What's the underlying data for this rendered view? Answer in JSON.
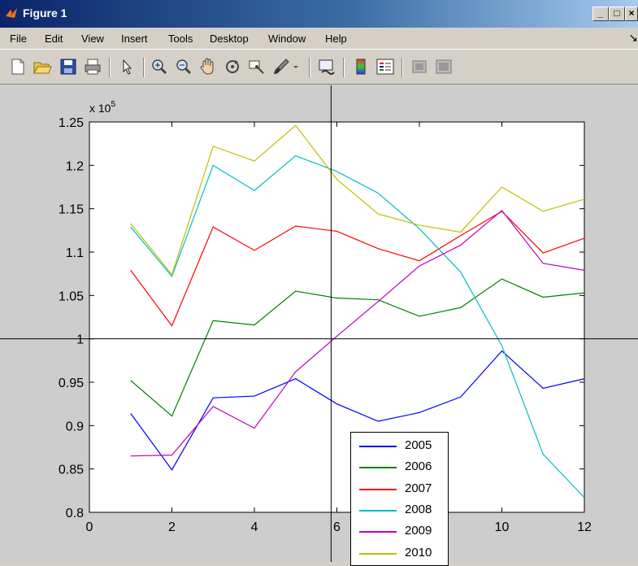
{
  "window": {
    "title": "Figure 1",
    "controls": {
      "minimize": "_",
      "maximize": "□",
      "close": "×"
    }
  },
  "menubar": {
    "items": [
      "File",
      "Edit",
      "View",
      "Insert",
      "Tools",
      "Desktop",
      "Window",
      "Help"
    ],
    "overflow_arrow": "↘"
  },
  "toolbar": {
    "buttons": [
      {
        "name": "new-figure-icon"
      },
      {
        "name": "open-file-icon"
      },
      {
        "name": "save-icon"
      },
      {
        "name": "print-icon"
      },
      {
        "name": "edit-plot-arrow-icon"
      },
      {
        "name": "zoom-in-icon"
      },
      {
        "name": "zoom-out-icon"
      },
      {
        "name": "pan-hand-icon"
      },
      {
        "name": "rotate-3d-icon"
      },
      {
        "name": "data-cursor-icon"
      },
      {
        "name": "brush-icon"
      },
      {
        "name": "link-plot-icon"
      },
      {
        "name": "colorbar-icon"
      },
      {
        "name": "legend-icon"
      },
      {
        "name": "hide-plot-tools-icon"
      },
      {
        "name": "show-plot-tools-icon"
      }
    ]
  },
  "chart_data": {
    "type": "line",
    "exponent_label": "x 10",
    "exponent_power": "5",
    "xlim": [
      0,
      12
    ],
    "ylim": [
      0.8,
      1.25
    ],
    "x_ticks": [
      "0",
      "2",
      "4",
      "6",
      "8",
      "10",
      "12"
    ],
    "y_ticks": [
      "0.8",
      "0.85",
      "0.9",
      "0.95",
      "1",
      "1.05",
      "1.1",
      "1.15",
      "1.2",
      "1.25"
    ],
    "x": [
      1,
      2,
      3,
      4,
      5,
      6,
      7,
      8,
      9,
      10,
      11,
      12
    ],
    "grid": false,
    "legend_position": "lower center",
    "series": [
      {
        "name": "2005",
        "color": "#0000ff",
        "values": [
          0.914,
          0.849,
          0.932,
          0.934,
          0.954,
          0.925,
          0.905,
          0.915,
          0.933,
          0.986,
          0.943,
          0.954
        ]
      },
      {
        "name": "2006",
        "color": "#008000",
        "values": [
          0.952,
          0.911,
          1.021,
          1.016,
          1.055,
          1.047,
          1.045,
          1.026,
          1.036,
          1.069,
          1.048,
          1.053
        ]
      },
      {
        "name": "2007",
        "color": "#ff0000",
        "values": [
          1.079,
          1.015,
          1.129,
          1.102,
          1.13,
          1.124,
          1.104,
          1.09,
          1.119,
          1.147,
          1.099,
          1.116
        ]
      },
      {
        "name": "2008",
        "color": "#00bfbf",
        "values": [
          1.129,
          1.072,
          1.2,
          1.171,
          1.211,
          1.193,
          1.168,
          1.127,
          1.077,
          0.992,
          0.867,
          0.817
        ]
      },
      {
        "name": "2009",
        "color": "#bf00bf",
        "values": [
          0.865,
          0.866,
          0.922,
          0.897,
          0.962,
          1.003,
          1.043,
          1.084,
          1.108,
          1.148,
          1.087,
          1.079
        ]
      },
      {
        "name": "2010",
        "color": "#bfbf00",
        "values": [
          1.133,
          1.074,
          1.222,
          1.205,
          1.246,
          1.184,
          1.144,
          1.131,
          1.123,
          1.175,
          1.147,
          1.161
        ]
      }
    ],
    "crosshair": {
      "x": 5.86,
      "y": 1.0
    }
  }
}
